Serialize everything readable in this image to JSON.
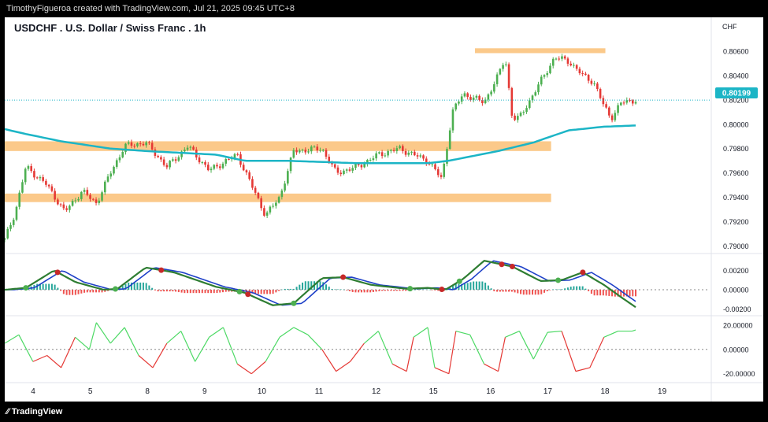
{
  "header": {
    "credit": "TimothyFigueroa created with TradingView.com, Jul 21, 2025 09:45 UTC+8"
  },
  "footer": {
    "brand": "TradingView",
    "brand_icon": "tradingview-logo-icon"
  },
  "chart_data": {
    "type": "candlestick",
    "title": "USDCHF . U.S. Dollar / Swiss Franc . 1h",
    "currency": "CHF",
    "last_price": "0.80199",
    "colors": {
      "up": "#4caf50",
      "down": "#e53935",
      "ma": "#1cb5c6",
      "zone": "#fbc98a",
      "osc_fast": "#2e7d32",
      "osc_slow": "#1e40c8",
      "osc_down": "#b71c1c",
      "hist_up": "#26a69a",
      "hist_down": "#ef5350",
      "mom_up": "#4cd964",
      "mom_down": "#e53935",
      "dot_up": "#4caf50",
      "dot_down": "#c62828"
    },
    "x_labels": [
      "4",
      "5",
      "8",
      "9",
      "10",
      "11",
      "12",
      "15",
      "16",
      "17",
      "18",
      "19"
    ],
    "price_axis": {
      "ticks": [
        "0.80600",
        "0.80400",
        "0.80200",
        "0.80000",
        "0.79800",
        "0.79600",
        "0.79400",
        "0.79200",
        "0.79000"
      ],
      "ylim": [
        0.7895,
        0.8075
      ]
    },
    "oscillator_axis": {
      "ticks": [
        "0.00200",
        "0.00000",
        "-0.00200"
      ],
      "ylim": [
        -0.0026,
        0.0035
      ]
    },
    "momentum_axis": {
      "ticks": [
        "20.00000",
        "0.00000",
        "-20.00000"
      ],
      "ylim": [
        -26,
        27
      ]
    },
    "zones": [
      {
        "low": 0.7978,
        "high": 0.7986,
        "from": 0,
        "to": 0.775
      },
      {
        "low": 0.7936,
        "high": 0.7943,
        "from": 0,
        "to": 0.775
      },
      {
        "low": 0.80585,
        "high": 0.80625,
        "from": 0.667,
        "to": 0.852
      }
    ],
    "close_anchors": [
      [
        0,
        0.7905
      ],
      [
        0.015,
        0.7928
      ],
      [
        0.03,
        0.7965
      ],
      [
        0.06,
        0.795
      ],
      [
        0.085,
        0.7928
      ],
      [
        0.11,
        0.7945
      ],
      [
        0.13,
        0.7935
      ],
      [
        0.15,
        0.796
      ],
      [
        0.17,
        0.7982
      ],
      [
        0.2,
        0.7985
      ],
      [
        0.23,
        0.7965
      ],
      [
        0.26,
        0.7982
      ],
      [
        0.29,
        0.7962
      ],
      [
        0.33,
        0.7975
      ],
      [
        0.35,
        0.795
      ],
      [
        0.37,
        0.7925
      ],
      [
        0.39,
        0.794
      ],
      [
        0.41,
        0.7978
      ],
      [
        0.45,
        0.798
      ],
      [
        0.47,
        0.796
      ],
      [
        0.5,
        0.7965
      ],
      [
        0.53,
        0.7975
      ],
      [
        0.56,
        0.798
      ],
      [
        0.6,
        0.797
      ],
      [
        0.62,
        0.7955
      ],
      [
        0.635,
        0.801
      ],
      [
        0.65,
        0.8025
      ],
      [
        0.68,
        0.8018
      ],
      [
        0.7,
        0.804
      ],
      [
        0.71,
        0.8055
      ],
      [
        0.72,
        0.8005
      ],
      [
        0.73,
        0.8005
      ],
      [
        0.76,
        0.8035
      ],
      [
        0.78,
        0.8055
      ],
      [
        0.8,
        0.8052
      ],
      [
        0.82,
        0.804
      ],
      [
        0.835,
        0.8035
      ],
      [
        0.85,
        0.8015
      ],
      [
        0.86,
        0.8005
      ],
      [
        0.875,
        0.8018
      ],
      [
        0.895,
        0.802
      ]
    ],
    "ma_anchors": [
      [
        0,
        0.7996
      ],
      [
        0.03,
        0.7992
      ],
      [
        0.08,
        0.7986
      ],
      [
        0.15,
        0.798
      ],
      [
        0.2,
        0.7978
      ],
      [
        0.3,
        0.7975
      ],
      [
        0.34,
        0.797
      ],
      [
        0.4,
        0.797
      ],
      [
        0.5,
        0.7968
      ],
      [
        0.6,
        0.7968
      ],
      [
        0.63,
        0.797
      ],
      [
        0.7,
        0.7978
      ],
      [
        0.75,
        0.7985
      ],
      [
        0.8,
        0.7995
      ],
      [
        0.85,
        0.7998
      ],
      [
        0.895,
        0.7999
      ]
    ],
    "oscillator_anchors": [
      [
        0,
        0.0
      ],
      [
        0.03,
        0.0002
      ],
      [
        0.07,
        0.002
      ],
      [
        0.1,
        0.0008
      ],
      [
        0.14,
        0.0
      ],
      [
        0.16,
        0.0001
      ],
      [
        0.2,
        0.0023
      ],
      [
        0.24,
        0.0018
      ],
      [
        0.3,
        0.0003
      ],
      [
        0.34,
        -0.0003
      ],
      [
        0.38,
        -0.0016
      ],
      [
        0.41,
        -0.0014
      ],
      [
        0.45,
        0.0012
      ],
      [
        0.48,
        0.0013
      ],
      [
        0.52,
        0.0005
      ],
      [
        0.57,
        0.0001
      ],
      [
        0.6,
        0.0002
      ],
      [
        0.625,
        0.0
      ],
      [
        0.65,
        0.0011
      ],
      [
        0.68,
        0.003
      ],
      [
        0.72,
        0.0024
      ],
      [
        0.76,
        0.0009
      ],
      [
        0.79,
        0.001
      ],
      [
        0.82,
        0.0018
      ],
      [
        0.85,
        0.0005
      ],
      [
        0.875,
        -0.0008
      ],
      [
        0.895,
        -0.0018
      ]
    ],
    "signal_dots": [
      {
        "t": 0.03,
        "dir": "up"
      },
      {
        "t": 0.075,
        "dir": "down"
      },
      {
        "t": 0.157,
        "dir": "up"
      },
      {
        "t": 0.222,
        "dir": "down"
      },
      {
        "t": 0.333,
        "dir": "up"
      },
      {
        "t": 0.345,
        "dir": "down"
      },
      {
        "t": 0.41,
        "dir": "up"
      },
      {
        "t": 0.48,
        "dir": "down"
      },
      {
        "t": 0.575,
        "dir": "up"
      },
      {
        "t": 0.62,
        "dir": "down"
      },
      {
        "t": 0.645,
        "dir": "up"
      },
      {
        "t": 0.705,
        "dir": "down"
      },
      {
        "t": 0.72,
        "dir": "down"
      },
      {
        "t": 0.785,
        "dir": "up"
      },
      {
        "t": 0.82,
        "dir": "down"
      }
    ],
    "momentum_anchors": [
      [
        0,
        5
      ],
      [
        0.02,
        12
      ],
      [
        0.04,
        -10
      ],
      [
        0.06,
        -5
      ],
      [
        0.08,
        -15
      ],
      [
        0.1,
        10
      ],
      [
        0.12,
        0
      ],
      [
        0.13,
        22
      ],
      [
        0.15,
        5
      ],
      [
        0.17,
        18
      ],
      [
        0.19,
        -5
      ],
      [
        0.21,
        -15
      ],
      [
        0.23,
        5
      ],
      [
        0.25,
        15
      ],
      [
        0.27,
        -10
      ],
      [
        0.29,
        10
      ],
      [
        0.31,
        18
      ],
      [
        0.33,
        -12
      ],
      [
        0.35,
        -20
      ],
      [
        0.37,
        -10
      ],
      [
        0.39,
        10
      ],
      [
        0.41,
        18
      ],
      [
        0.43,
        12
      ],
      [
        0.45,
        0
      ],
      [
        0.47,
        -18
      ],
      [
        0.49,
        -10
      ],
      [
        0.51,
        5
      ],
      [
        0.53,
        15
      ],
      [
        0.55,
        -12
      ],
      [
        0.57,
        -18
      ],
      [
        0.58,
        10
      ],
      [
        0.6,
        18
      ],
      [
        0.61,
        -15
      ],
      [
        0.63,
        -20
      ],
      [
        0.64,
        15
      ],
      [
        0.66,
        12
      ],
      [
        0.68,
        -12
      ],
      [
        0.7,
        -18
      ],
      [
        0.71,
        10
      ],
      [
        0.73,
        15
      ],
      [
        0.75,
        -8
      ],
      [
        0.77,
        14
      ],
      [
        0.79,
        15
      ],
      [
        0.81,
        -18
      ],
      [
        0.83,
        -15
      ],
      [
        0.85,
        10
      ],
      [
        0.87,
        15
      ],
      [
        0.89,
        15
      ],
      [
        0.895,
        16
      ]
    ]
  }
}
